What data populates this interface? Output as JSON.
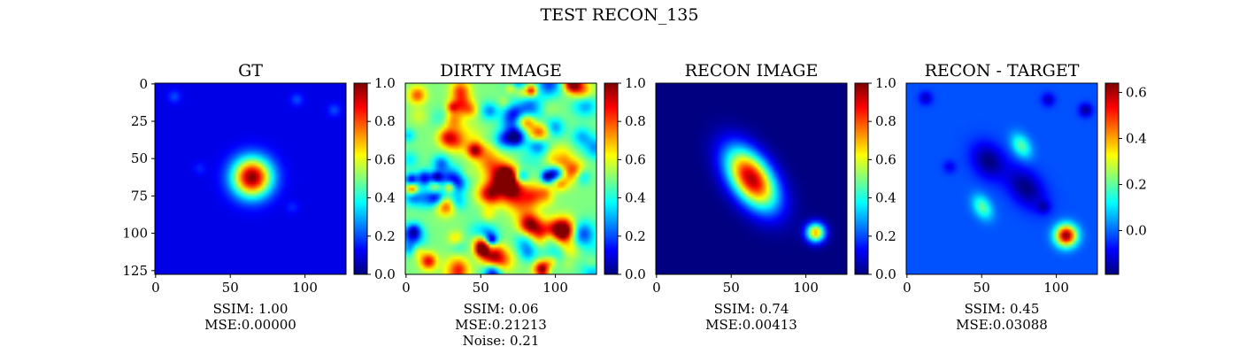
{
  "suptitle": "TEST RECON_135",
  "colormap": "jet",
  "chart_data": [
    {
      "type": "heatmap",
      "title": "GT",
      "xlim": [
        0,
        128
      ],
      "ylim": [
        128,
        0
      ],
      "xticks": [
        "0",
        "50",
        "100"
      ],
      "yticks": [
        "0",
        "25",
        "50",
        "75",
        "100",
        "125"
      ],
      "colorbar": {
        "range": [
          0.0,
          1.0
        ],
        "ticks": [
          "0.0",
          "0.2",
          "0.4",
          "0.6",
          "0.8",
          "1.0"
        ]
      },
      "background": 0.1,
      "sources": [
        {
          "x": 65,
          "y": 63,
          "amplitude": 0.9,
          "sx": 9,
          "sy": 9,
          "rotation": 0
        },
        {
          "x": 13,
          "y": 9,
          "amplitude": 0.1,
          "sx": 3,
          "sy": 3,
          "rotation": 0
        },
        {
          "x": 95,
          "y": 11,
          "amplitude": 0.1,
          "sx": 3,
          "sy": 3,
          "rotation": 0
        },
        {
          "x": 120,
          "y": 18,
          "amplitude": 0.1,
          "sx": 3,
          "sy": 3,
          "rotation": 0
        },
        {
          "x": 30,
          "y": 57,
          "amplitude": 0.06,
          "sx": 3,
          "sy": 3,
          "rotation": 0
        },
        {
          "x": 92,
          "y": 83,
          "amplitude": 0.06,
          "sx": 3,
          "sy": 3,
          "rotation": 0
        }
      ],
      "metrics": [
        "SSIM: 1.00",
        "MSE:0.00000"
      ]
    },
    {
      "type": "heatmap",
      "title": "DIRTY IMAGE",
      "xlim": [
        0,
        128
      ],
      "ylim": [
        128,
        0
      ],
      "xticks": [
        "0",
        "50",
        "100"
      ],
      "yticks": [],
      "colorbar": {
        "range": [
          0.0,
          1.0
        ],
        "ticks": [
          "0.0",
          "0.2",
          "0.4",
          "0.6",
          "0.8",
          "1.0"
        ]
      },
      "background": 0.5,
      "texture": "random",
      "sources": [
        {
          "x": 65,
          "y": 65,
          "amplitude": 0.35,
          "sx": 6,
          "sy": 22,
          "rotation": -35
        },
        {
          "x": 105,
          "y": 100,
          "amplitude": 0.45,
          "sx": 6,
          "sy": 5,
          "rotation": 0
        },
        {
          "x": 8,
          "y": 8,
          "amplitude": 0.3,
          "sx": 4,
          "sy": 4,
          "rotation": 0
        }
      ],
      "metrics": [
        "SSIM: 0.06",
        "MSE:0.21213",
        "Noise: 0.21"
      ]
    },
    {
      "type": "heatmap",
      "title": "RECON IMAGE",
      "xlim": [
        0,
        128
      ],
      "ylim": [
        128,
        0
      ],
      "xticks": [
        "0",
        "50",
        "100"
      ],
      "yticks": [],
      "colorbar": {
        "range": [
          0.0,
          1.0
        ],
        "ticks": [
          "0.0",
          "0.2",
          "0.4",
          "0.6",
          "0.8",
          "1.0"
        ]
      },
      "background": 0.0,
      "sources": [
        {
          "x": 64,
          "y": 64,
          "amplitude": 0.95,
          "sx": 9,
          "sy": 16,
          "rotation": -35
        },
        {
          "x": 107,
          "y": 100,
          "amplitude": 0.7,
          "sx": 4.5,
          "sy": 4.5,
          "rotation": 0
        }
      ],
      "metrics": [
        "SSIM: 0.74",
        "MSE:0.00413"
      ]
    },
    {
      "type": "heatmap",
      "title": "RECON - TARGET",
      "xlim": [
        0,
        128
      ],
      "ylim": [
        128,
        0
      ],
      "xticks": [
        "0",
        "50",
        "100"
      ],
      "yticks": [],
      "colorbar": {
        "range": [
          -0.19,
          0.64
        ],
        "ticks": [
          "0.0",
          "0.2",
          "0.4",
          "0.6"
        ],
        "tick_values": [
          0.0,
          0.2,
          0.4,
          0.6
        ],
        "extra_ticks": [
          "",
          "0.0"
        ]
      },
      "background": -0.02,
      "sources": [
        {
          "x": 55,
          "y": 52,
          "amplitude": -0.17,
          "sx": 7,
          "sy": 9,
          "rotation": -35
        },
        {
          "x": 80,
          "y": 70,
          "amplitude": -0.17,
          "sx": 7,
          "sy": 11,
          "rotation": -40
        },
        {
          "x": 77,
          "y": 42,
          "amplitude": 0.22,
          "sx": 4,
          "sy": 6,
          "rotation": -30
        },
        {
          "x": 51,
          "y": 83,
          "amplitude": 0.22,
          "sx": 4,
          "sy": 6,
          "rotation": -30
        },
        {
          "x": 107,
          "y": 102,
          "amplitude": 0.66,
          "sx": 5,
          "sy": 5,
          "rotation": 0
        },
        {
          "x": 13,
          "y": 10,
          "amplitude": -0.12,
          "sx": 3,
          "sy": 3,
          "rotation": 0
        },
        {
          "x": 95,
          "y": 11,
          "amplitude": -0.12,
          "sx": 3,
          "sy": 3,
          "rotation": 0
        },
        {
          "x": 120,
          "y": 18,
          "amplitude": -0.16,
          "sx": 3,
          "sy": 3,
          "rotation": 0
        },
        {
          "x": 29,
          "y": 56,
          "amplitude": -0.08,
          "sx": 3,
          "sy": 3,
          "rotation": 0
        },
        {
          "x": 92,
          "y": 83,
          "amplitude": -0.1,
          "sx": 3,
          "sy": 3,
          "rotation": 0
        }
      ],
      "metrics": [
        "SSIM: 0.45",
        "MSE:0.03088"
      ]
    }
  ]
}
